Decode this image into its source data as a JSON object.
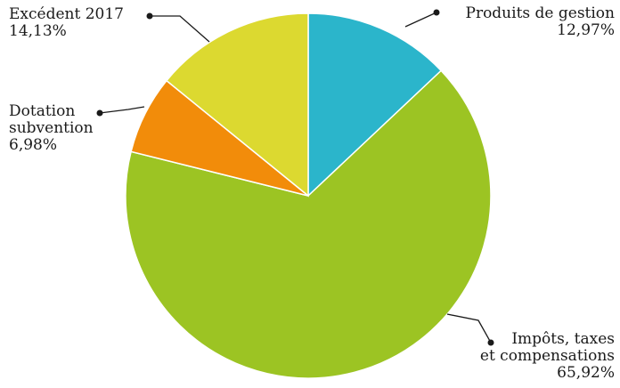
{
  "chart_data": {
    "type": "pie",
    "slices": [
      {
        "label_lines": [
          "Produits de gestion"
        ],
        "percent_label": "12,97%",
        "value": 12.97,
        "color": "#2bb5cb"
      },
      {
        "label_lines": [
          "Impôts, taxes",
          "et compensations"
        ],
        "percent_label": "65,92%",
        "value": 65.92,
        "color": "#9cc423"
      },
      {
        "label_lines": [
          "Dotation",
          "subvention"
        ],
        "percent_label": "6,98%",
        "value": 6.98,
        "color": "#f28c0a"
      },
      {
        "label_lines": [
          "Excédent 2017"
        ],
        "percent_label": "14,13%",
        "value": 14.13,
        "color": "#dcd930"
      }
    ]
  }
}
